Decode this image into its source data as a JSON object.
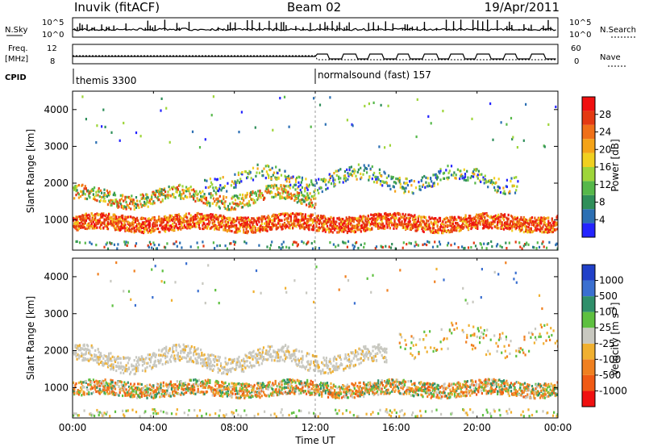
{
  "header": {
    "station": "Inuvik (fitACF)",
    "beam": "Beam 02",
    "date": "19/Apr/2011"
  },
  "aux_panel": {
    "nsky_label": "N.Sky",
    "nsky_ticks": [
      "10^5",
      "10^0"
    ],
    "nsearch_label": "N.Search",
    "nsearch_ticks": [
      "10^5",
      "10^0"
    ],
    "freq_label_1": "Freq.",
    "freq_label_2": "[MHz]",
    "freq_ticks": [
      "12",
      "8"
    ],
    "nave_label": "Nave",
    "nave_ticks": [
      "60",
      "0"
    ],
    "cpid_label": "CPID",
    "cpid_segments": [
      {
        "name": "themis 3300",
        "start_hour": 0
      },
      {
        "name": "normalsound (fast) 157",
        "start_hour": 12
      }
    ]
  },
  "chart_data": [
    {
      "type": "heatmap",
      "title": "",
      "xlabel": "Time UT",
      "ylabel": "Slant Range [km]",
      "x_range_hours": [
        0,
        24
      ],
      "x_ticks": [
        "00:00",
        "04:00",
        "08:00",
        "12:00",
        "16:00",
        "20:00",
        "00:00"
      ],
      "ylim": [
        180,
        4500
      ],
      "y_ticks": [
        1000,
        2000,
        3000,
        4000
      ],
      "colorbar": {
        "label": "Power [dB]",
        "ticks": [
          "4",
          "8",
          "12",
          "16",
          "20",
          "24",
          "28"
        ],
        "colors": [
          "#2424ff",
          "#2b6fb3",
          "#2f8f5a",
          "#56b84a",
          "#9ed53a",
          "#f0d020",
          "#f4a318",
          "#f07018",
          "#e43a12",
          "#f01010"
        ]
      },
      "bands": [
        {
          "range_km": 950,
          "strength": "high (24-30 dB)",
          "span_hours": [
            0,
            24
          ]
        },
        {
          "range_km": 1650,
          "strength": "medium (12-24 dB)",
          "span_hours": [
            0,
            12
          ]
        },
        {
          "range_km": 2200,
          "strength": "low-medium (8-20 dB)",
          "span_hours": [
            6.5,
            22
          ]
        },
        {
          "range_km": 4000,
          "strength": "low (4-12 dB)",
          "span_hours": [
            0,
            24
          ]
        }
      ]
    },
    {
      "type": "heatmap",
      "title": "",
      "xlabel": "Time UT",
      "ylabel": "Slant Range [km]",
      "x_range_hours": [
        0,
        24
      ],
      "x_ticks": [
        "00:00",
        "04:00",
        "08:00",
        "12:00",
        "16:00",
        "20:00",
        "00:00"
      ],
      "ylim": [
        180,
        4500
      ],
      "y_ticks": [
        1000,
        2000,
        3000,
        4000
      ],
      "colorbar": {
        "label": "Velocity [m s^-1]",
        "ticks": [
          "1000",
          "500",
          "100",
          "25",
          "-25",
          "-100",
          "-500",
          "-1000"
        ],
        "colors": [
          "#2040c8",
          "#3a6fd0",
          "#2f8f6a",
          "#5ec040",
          "#c8c8c0",
          "#f0b030",
          "#f08020",
          "#f05a14",
          "#f01010"
        ]
      },
      "bands": [
        {
          "range_km": 1000,
          "velocity": "-100 to -500 (orange) and 100 to 500 (green)",
          "span_hours": [
            0,
            24
          ]
        },
        {
          "range_km": 1800,
          "velocity": "-25 to 25 (ground scatter, grey)",
          "span_hours": [
            0,
            15.5
          ]
        },
        {
          "range_km": 2300,
          "velocity": "-100 (orange)",
          "span_hours": [
            16,
            24
          ]
        }
      ]
    }
  ]
}
